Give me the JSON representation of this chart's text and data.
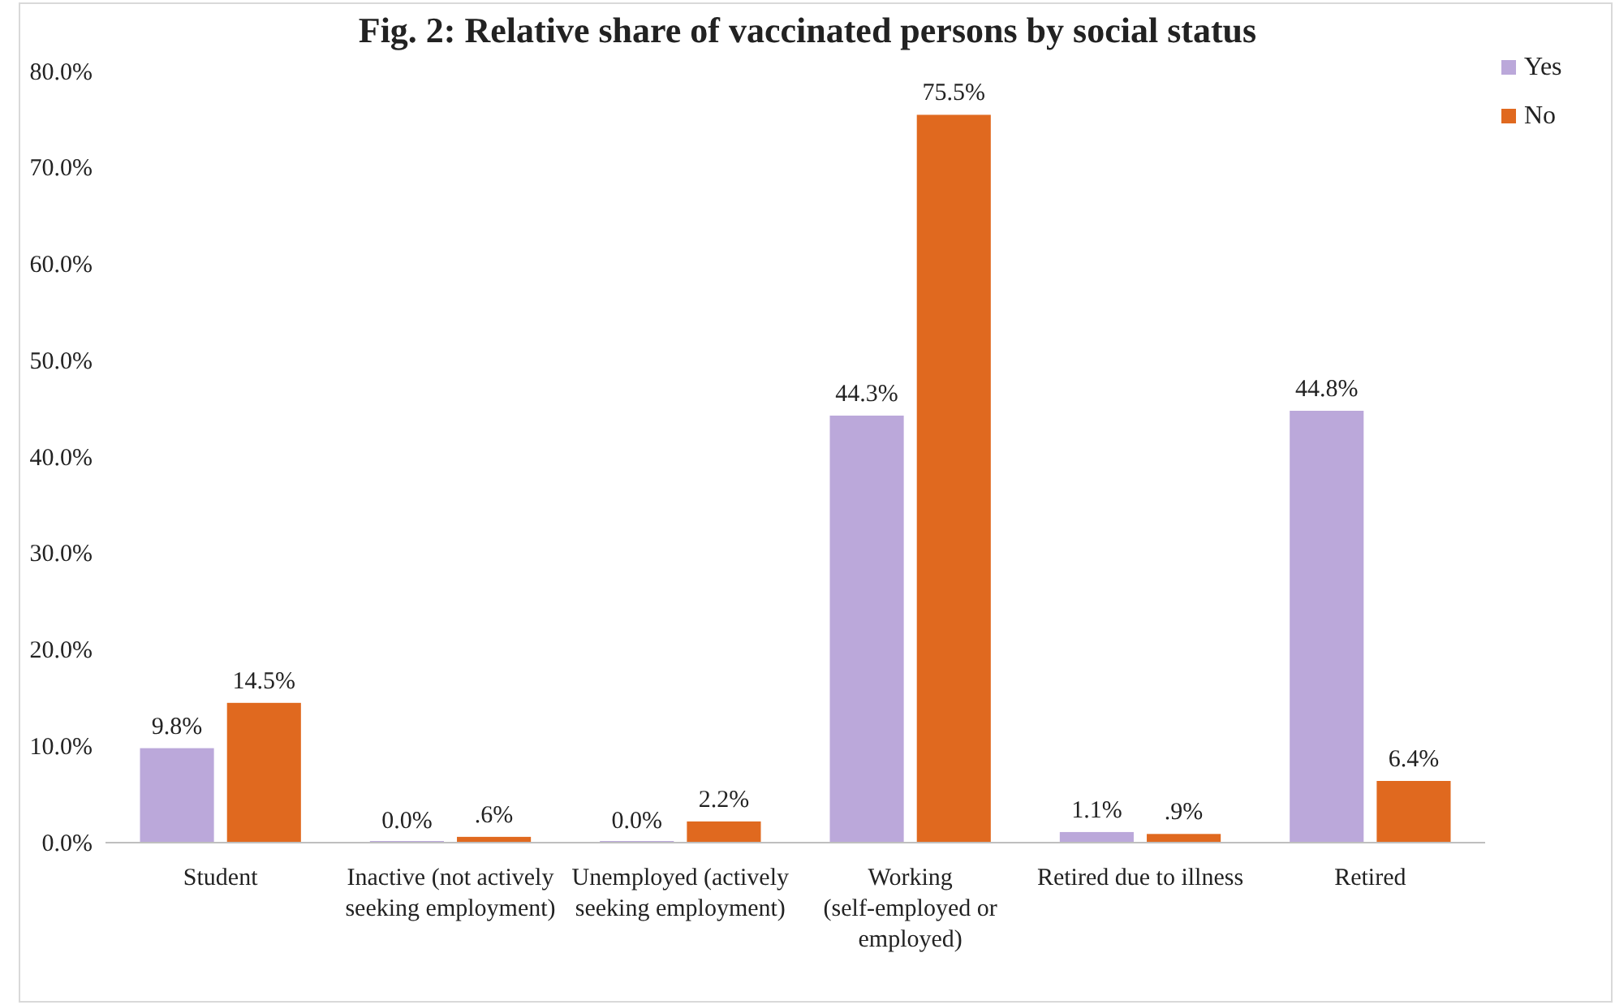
{
  "chart_data": {
    "type": "bar",
    "title": "Fig. 2: Relative share of vaccinated persons by social status",
    "categories": [
      "Student",
      "Inactive (not actively seeking employment)",
      "Unemployed (actively seeking employment)",
      "Working (self-employed or employed)",
      "Retired due to illness",
      "Retired"
    ],
    "series": [
      {
        "name": "Yes",
        "color": "#bba8da",
        "values": [
          9.8,
          0.0,
          0.0,
          44.3,
          1.1,
          44.8
        ],
        "value_labels": [
          "9.8%",
          "0.0%",
          "0.0%",
          "44.3%",
          "1.1%",
          "44.8%"
        ]
      },
      {
        "name": "No",
        "color": "#e0691f",
        "values": [
          14.5,
          0.6,
          2.2,
          75.5,
          0.9,
          6.4
        ],
        "value_labels": [
          "14.5%",
          ".6%",
          "2.2%",
          "75.5%",
          ".9%",
          "6.4%"
        ]
      }
    ],
    "ylim": [
      0,
      80
    ],
    "yticks": [
      {
        "value": 0,
        "label": "0.0%"
      },
      {
        "value": 10,
        "label": "10.0%"
      },
      {
        "value": 20,
        "label": "20.0%"
      },
      {
        "value": 30,
        "label": "30.0%"
      },
      {
        "value": 40,
        "label": "40.0%"
      },
      {
        "value": 50,
        "label": "50.0%"
      },
      {
        "value": 60,
        "label": "60.0%"
      },
      {
        "value": 70,
        "label": "70.0%"
      },
      {
        "value": 80,
        "label": "80.0%"
      }
    ],
    "grid": false,
    "legend": "top right"
  }
}
